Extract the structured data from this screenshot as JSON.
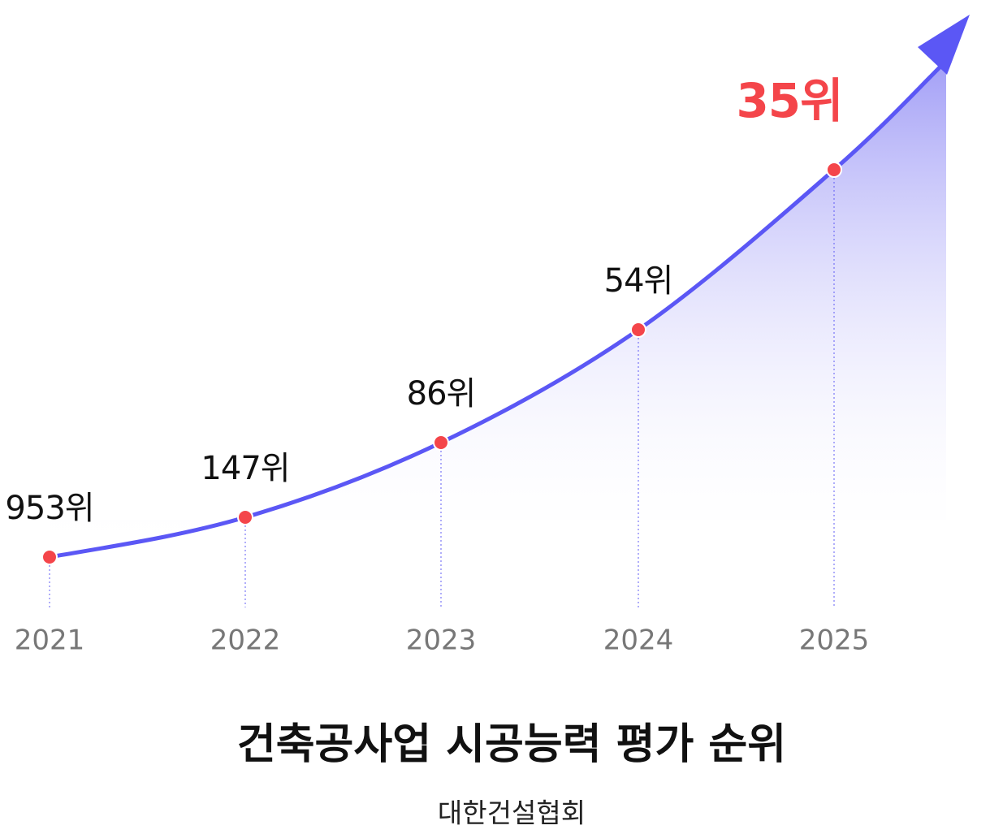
{
  "chart_data": {
    "type": "line",
    "title": "건축공사업 시공능력 평가 순위",
    "subtitle": "대한건설협회",
    "categories": [
      "2021",
      "2022",
      "2023",
      "2024",
      "2025"
    ],
    "values": [
      953,
      147,
      86,
      54,
      35
    ],
    "value_labels": [
      "953위",
      "147위",
      "86위",
      "54위",
      "35위"
    ],
    "color": "#5b57f5",
    "marker_color": "#f4454a",
    "highlight_color": "#f4454a"
  }
}
